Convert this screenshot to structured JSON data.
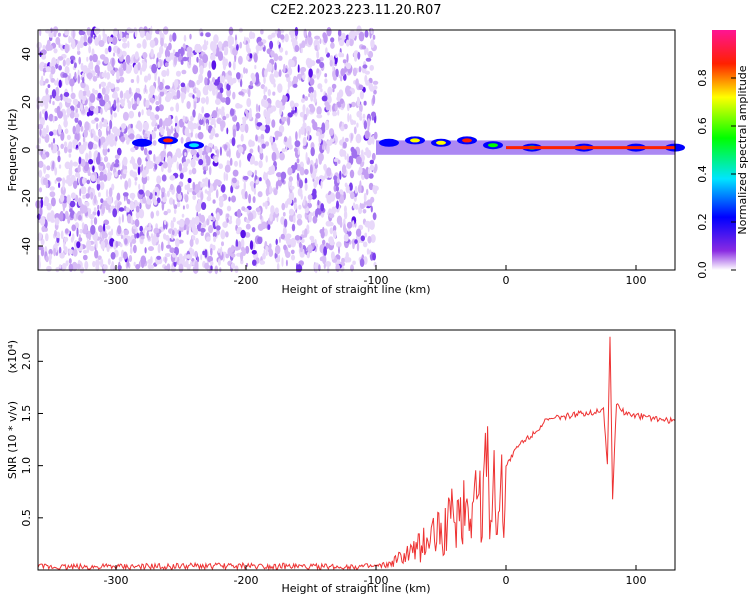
{
  "title": "C2E2.2023.223.11.20.R07",
  "chart_data": [
    {
      "type": "heatmap",
      "xlabel": "Height of straight line (km)",
      "ylabel": "Frequency (Hz)",
      "xlim": [
        -360,
        130
      ],
      "ylim": [
        -50,
        50
      ],
      "x_ticks": [
        -300,
        -200,
        -100,
        0,
        100
      ],
      "y_ticks": [
        -40,
        -20,
        0,
        20,
        40
      ],
      "data_cutoff_x": -100,
      "signal": [
        {
          "x": -280,
          "f": 3
        },
        {
          "x": -260,
          "f": 4
        },
        {
          "x": -240,
          "f": 2
        },
        {
          "x": -90,
          "f": 3
        },
        {
          "x": -70,
          "f": 4
        },
        {
          "x": -50,
          "f": 3
        },
        {
          "x": -30,
          "f": 4
        },
        {
          "x": -10,
          "f": 2
        },
        {
          "x": 20,
          "f": 1
        },
        {
          "x": 60,
          "f": 1
        },
        {
          "x": 100,
          "f": 1
        },
        {
          "x": 130,
          "f": 1
        }
      ],
      "colorbar": {
        "label": "Normalized spectral amplitude",
        "range": [
          0,
          1
        ],
        "ticks": [
          "0.0",
          "0.2",
          "0.4",
          "0.6",
          "0.8"
        ]
      }
    },
    {
      "type": "line",
      "xlabel": "Height of straight line (km)",
      "ylabel": "SNR (10 * v/v)",
      "multiplier": "(x10⁴)",
      "xlim": [
        -360,
        130
      ],
      "ylim": [
        0,
        2.3
      ],
      "x_ticks": [
        -300,
        -200,
        -100,
        0,
        100
      ],
      "y_ticks": [
        "0.5",
        "1.0",
        "1.5",
        "2.0"
      ],
      "color": "#ee3333",
      "series": [
        {
          "x": [
            -360,
            -300,
            -200,
            -150,
            -100,
            -90,
            -80,
            -70,
            -60,
            -50,
            -40,
            -30,
            -20,
            -10,
            -5,
            0,
            10,
            20,
            30,
            40,
            50,
            60,
            70,
            75,
            78,
            80,
            82,
            85,
            90,
            100,
            110,
            120,
            130
          ],
          "y": [
            0.03,
            0.03,
            0.04,
            0.03,
            0.03,
            0.05,
            0.12,
            0.18,
            0.3,
            0.38,
            0.48,
            0.6,
            0.75,
            0.9,
            0.5,
            1.0,
            1.2,
            1.3,
            1.42,
            1.46,
            1.48,
            1.5,
            1.52,
            1.55,
            1.0,
            2.25,
            0.7,
            1.6,
            1.52,
            1.48,
            1.46,
            1.44,
            1.43
          ]
        }
      ]
    }
  ]
}
